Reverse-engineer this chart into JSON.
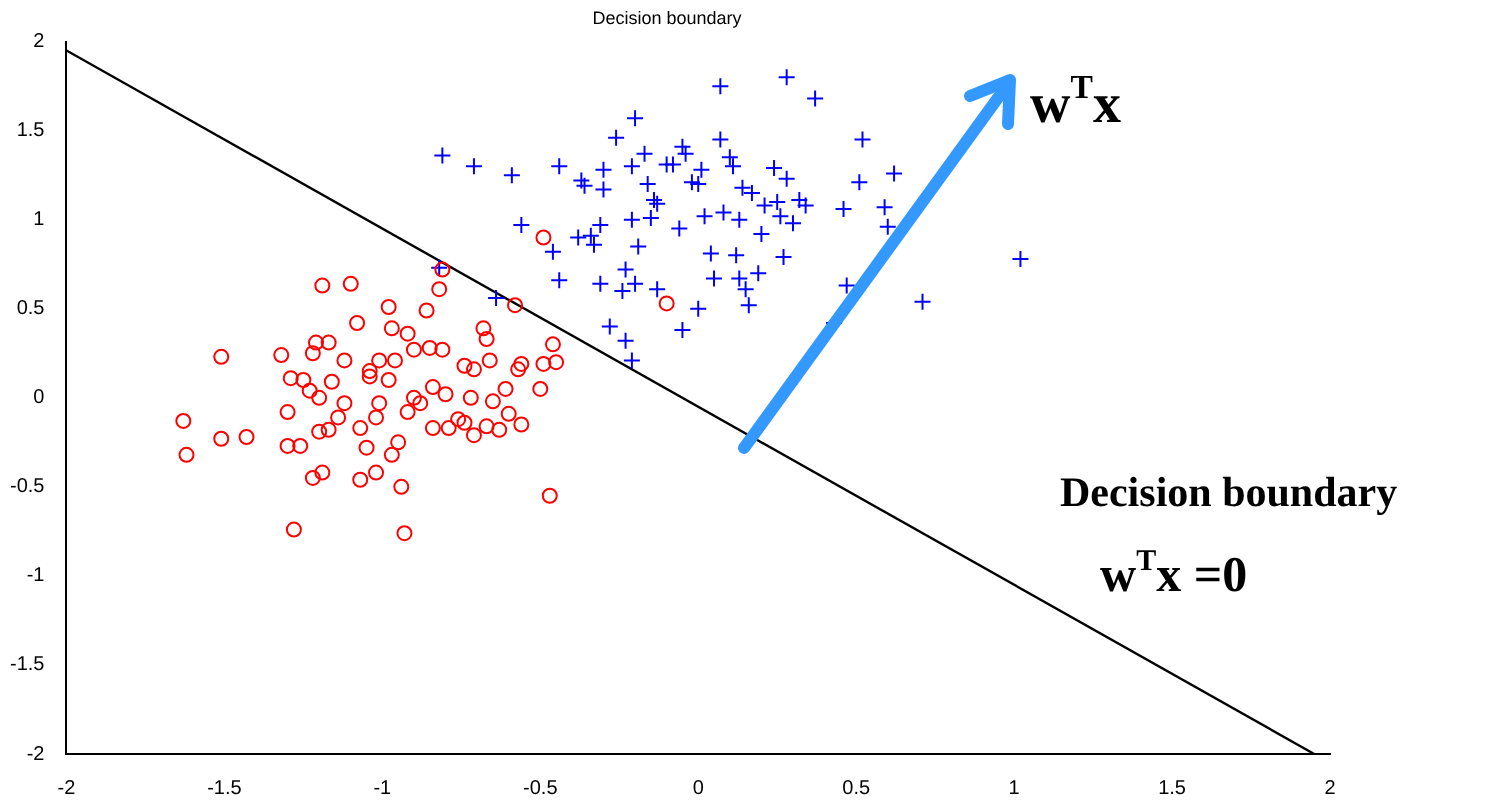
{
  "chart_data": {
    "type": "scatter",
    "title": "Decision boundary",
    "xlim": [
      -2,
      2
    ],
    "xticks": [
      -2,
      -1.5,
      -1,
      -0.5,
      0,
      0.5,
      1,
      1.5,
      2
    ],
    "ylim": [
      -2,
      2
    ],
    "yticks": [
      -2,
      -1.5,
      -1,
      -0.5,
      0,
      0.5,
      1,
      1.5,
      2
    ],
    "grid": false,
    "legend": false,
    "annotations": [
      "w$^{T}$x",
      "Decision boundary",
      "w$^{T}$x =0"
    ],
    "series": [
      {
        "color": "#ff0000",
        "marker": "circle",
        "x": [
          -1.63,
          -1.62,
          -1.51,
          -1.51,
          -1.43,
          -1.32,
          -1.28,
          -1.3,
          -1.26,
          -1.22,
          -1.19,
          -1.19,
          -1.1,
          -1.08,
          -1.21,
          -1.17,
          -1.22,
          -1.29,
          -1.25,
          -1.23,
          -1.2,
          -1.16,
          -1.3,
          -1.17,
          -1.2,
          -1.14,
          -1.12,
          -1.12,
          -1.07,
          -1.07,
          -1.05,
          -1.04,
          -1.04,
          -1.02,
          -1.01,
          -0.98,
          -0.98,
          -0.97,
          -1.01,
          -1.02,
          -0.97,
          -0.96,
          -0.94,
          -0.93,
          -0.95,
          -0.92,
          -0.92,
          -0.9,
          -0.88,
          -0.9,
          -0.86,
          -0.85,
          -0.84,
          -0.84,
          -0.82,
          -0.81,
          -0.81,
          -0.8,
          -0.79,
          -0.76,
          -0.74,
          -0.72,
          -0.74,
          -0.71,
          -0.71,
          -0.68,
          -0.67,
          -0.66,
          -0.65,
          -0.67,
          -0.63,
          -0.61,
          -0.6,
          -0.58,
          -0.56,
          -0.56,
          -0.57,
          -0.5,
          -0.49,
          -0.46,
          -0.45,
          -0.47,
          -0.49,
          -0.1
        ],
        "values": [
          -0.13,
          -0.32,
          0.23,
          -0.23,
          -0.22,
          0.24,
          -0.74,
          -0.27,
          -0.27,
          -0.45,
          -0.42,
          0.63,
          0.64,
          0.42,
          0.31,
          0.31,
          0.25,
          0.11,
          0.1,
          0.04,
          0,
          0.09,
          -0.08,
          -0.18,
          -0.19,
          -0.11,
          0.21,
          -0.03,
          -0.17,
          -0.46,
          -0.28,
          0.15,
          0.12,
          -0.42,
          0.21,
          0.1,
          0.51,
          0.39,
          -0.03,
          -0.11,
          -0.32,
          0.21,
          -0.5,
          -0.76,
          -0.25,
          -0.08,
          0.36,
          0,
          -0.03,
          0.27,
          0.49,
          0.28,
          0.06,
          -0.17,
          0.61,
          0.72,
          0.27,
          0.02,
          -0.17,
          -0.12,
          -0.14,
          0,
          0.18,
          0.16,
          -0.21,
          0.39,
          0.33,
          0.21,
          -0.02,
          -0.16,
          -0.18,
          0.05,
          -0.09,
          0.52,
          -0.15,
          0.19,
          0.16,
          0.05,
          0.19,
          0.3,
          0.2,
          -0.55,
          0.9,
          0.53
        ]
      },
      {
        "color": "#0000ff",
        "marker": "cross",
        "x": [
          -0.81,
          -0.71,
          -0.59,
          -0.56,
          -0.64,
          -0.82,
          -0.44,
          -0.46,
          -0.44,
          -0.38,
          -0.37,
          -0.36,
          -0.34,
          -0.33,
          -0.31,
          -0.3,
          -0.28,
          -0.31,
          -0.3,
          -0.26,
          -0.23,
          -0.24,
          -0.23,
          -0.21,
          -0.2,
          -0.21,
          -0.21,
          -0.19,
          -0.2,
          -0.17,
          -0.16,
          -0.15,
          -0.14,
          -0.13,
          -0.13,
          -0.1,
          -0.08,
          -0.06,
          -0.05,
          -0.05,
          -0.04,
          -0.02,
          0,
          0,
          0.01,
          0.02,
          0.04,
          0.05,
          0.07,
          0.07,
          0.08,
          0.1,
          0.11,
          0.12,
          0.13,
          0.13,
          0.14,
          0.15,
          0.16,
          0.17,
          0.19,
          0.2,
          0.21,
          0.24,
          0.25,
          0.26,
          0.27,
          0.28,
          0.28,
          0.3,
          0.32,
          0.34,
          0.37,
          0.46,
          0.47,
          0.51,
          0.52,
          0.59,
          0.6,
          0.62,
          0.71,
          1.02,
          0.43
        ],
        "values": [
          1.36,
          1.3,
          1.25,
          0.97,
          0.56,
          0.73,
          0.66,
          0.82,
          1.3,
          0.9,
          1.22,
          1.19,
          0.91,
          0.86,
          0.97,
          1.28,
          0.4,
          0.64,
          1.17,
          1.46,
          0.72,
          0.6,
          0.32,
          0.21,
          1.57,
          1.3,
          1,
          0.85,
          0.64,
          1.37,
          1.2,
          1.01,
          1.11,
          1.09,
          0.61,
          1.31,
          1.31,
          0.95,
          0.38,
          1.41,
          1.37,
          1.21,
          1.2,
          0.5,
          1.28,
          1.02,
          0.81,
          0.67,
          1.75,
          1.45,
          1.04,
          1.35,
          1.3,
          0.8,
          1,
          0.67,
          1.18,
          0.61,
          0.52,
          1.15,
          0.7,
          0.92,
          1.08,
          1.29,
          1.1,
          1.02,
          0.79,
          1.8,
          1.23,
          0.98,
          1.11,
          1.08,
          1.68,
          1.06,
          0.63,
          1.21,
          1.45,
          1.07,
          0.96,
          1.26,
          0.54,
          0.78,
          0.42
        ]
      },
      {
        "type": "line",
        "color": "#000000",
        "marker": "none",
        "x": [
          -2,
          1.95
        ],
        "values": [
          1.95,
          -2
        ]
      }
    ]
  }
}
